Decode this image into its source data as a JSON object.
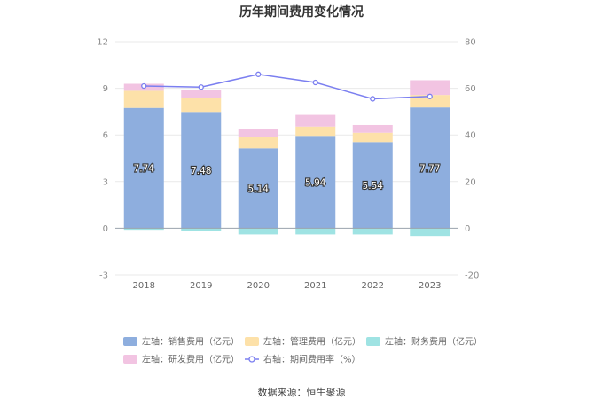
{
  "chart_data": {
    "type": "bar",
    "title": "历年期间费用变化情况",
    "categories": [
      "2018",
      "2019",
      "2020",
      "2021",
      "2022",
      "2023"
    ],
    "left_axis": {
      "ylim": [
        -3,
        12
      ],
      "ticks": [
        -3,
        0,
        3,
        6,
        9,
        12
      ]
    },
    "right_axis": {
      "ylim": [
        -20,
        80
      ],
      "ticks": [
        -20,
        0,
        20,
        40,
        60,
        80
      ]
    },
    "stacked": true,
    "series": [
      {
        "name": "左轴：销售费用（亿元）",
        "axis": "left",
        "color": "#8eaede",
        "values": [
          7.74,
          7.48,
          5.14,
          5.94,
          5.54,
          7.77
        ],
        "labels": [
          "7.74",
          "7.48",
          "5.14",
          "5.94",
          "5.54",
          "7.77"
        ]
      },
      {
        "name": "左轴：管理费用（亿元）",
        "axis": "left",
        "color": "#fde1a9",
        "values": [
          1.1,
          0.9,
          0.7,
          0.6,
          0.6,
          0.8
        ]
      },
      {
        "name": "左轴：财务费用（亿元）",
        "axis": "left",
        "color": "#9fe3e3",
        "values": [
          -0.1,
          -0.2,
          -0.4,
          -0.4,
          -0.4,
          -0.5
        ]
      },
      {
        "name": "左轴：研发费用（亿元）",
        "axis": "left",
        "color": "#f2c4e2",
        "values": [
          0.45,
          0.5,
          0.55,
          0.75,
          0.5,
          0.95
        ]
      },
      {
        "name": "右轴：期间费用率（%）",
        "axis": "right",
        "type": "line",
        "color": "#7b7ff0",
        "values": [
          61,
          60.5,
          66,
          62.5,
          55.5,
          56.5
        ]
      }
    ],
    "legend_position": "bottom",
    "grid": true
  },
  "footer": {
    "source": "数据来源：恒生聚源"
  }
}
